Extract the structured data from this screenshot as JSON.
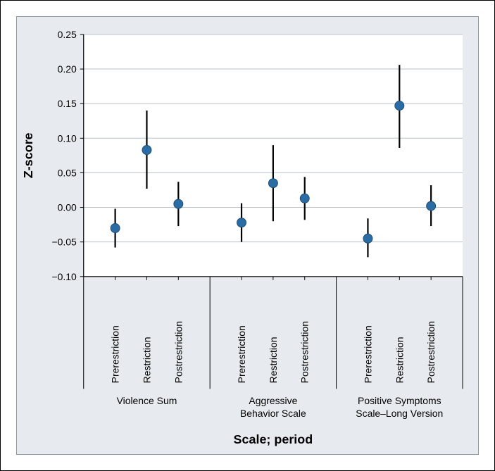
{
  "chart": {
    "type": "error-bar-dot",
    "y_axis": {
      "label": "Z-score",
      "label_fontsize": 18,
      "label_fontweight": "bold",
      "min": -0.1,
      "max": 0.25,
      "ticks": [
        -0.1,
        -0.05,
        0.0,
        0.05,
        0.1,
        0.15,
        0.2,
        0.25
      ],
      "tick_labels": [
        "−0.10",
        "−0.05",
        "0.00",
        "0.05",
        "0.10",
        "0.15",
        "0.20",
        "0.25"
      ],
      "tick_fontsize": 14
    },
    "x_axis": {
      "label": "Scale; period",
      "label_fontsize": 18,
      "label_fontweight": "bold",
      "period_labels": [
        "Prerestriction",
        "Restriction",
        "Postrestriction"
      ],
      "group_labels": [
        "Violence Sum",
        "Aggressive\nBehavior Scale",
        "Positive Symptoms\nScale–Long Version"
      ],
      "tick_fontsize": 14
    },
    "groups": [
      {
        "name": "Violence Sum",
        "points": [
          {
            "period": "Prerestriction",
            "value": -0.03,
            "low": -0.058,
            "high": -0.002
          },
          {
            "period": "Restriction",
            "value": 0.083,
            "low": 0.027,
            "high": 0.14
          },
          {
            "period": "Postrestriction",
            "value": 0.005,
            "low": -0.027,
            "high": 0.037
          }
        ]
      },
      {
        "name": "Aggressive Behavior Scale",
        "points": [
          {
            "period": "Prerestriction",
            "value": -0.022,
            "low": -0.05,
            "high": 0.006
          },
          {
            "period": "Restriction",
            "value": 0.035,
            "low": -0.02,
            "high": 0.09
          },
          {
            "period": "Postrestriction",
            "value": 0.013,
            "low": -0.018,
            "high": 0.044
          }
        ]
      },
      {
        "name": "Positive Symptoms Scale–Long Version",
        "points": [
          {
            "period": "Prerestriction",
            "value": -0.045,
            "low": -0.072,
            "high": -0.016
          },
          {
            "period": "Restriction",
            "value": 0.147,
            "low": 0.086,
            "high": 0.206
          },
          {
            "period": "Postrestriction",
            "value": 0.002,
            "low": -0.027,
            "high": 0.032
          }
        ]
      }
    ],
    "colors": {
      "panel_bg": "#e7ebef",
      "plot_bg": "#ffffff",
      "gridline": "#b8c0c9",
      "axis_line": "#000000",
      "error_bar": "#000000",
      "marker_fill": "#2a6ca3",
      "marker_stroke": "#1d4e77",
      "text": "#000000"
    },
    "marker_radius": 6.5,
    "error_bar_width": 2.2,
    "fonts": {
      "family": "Arial"
    }
  }
}
